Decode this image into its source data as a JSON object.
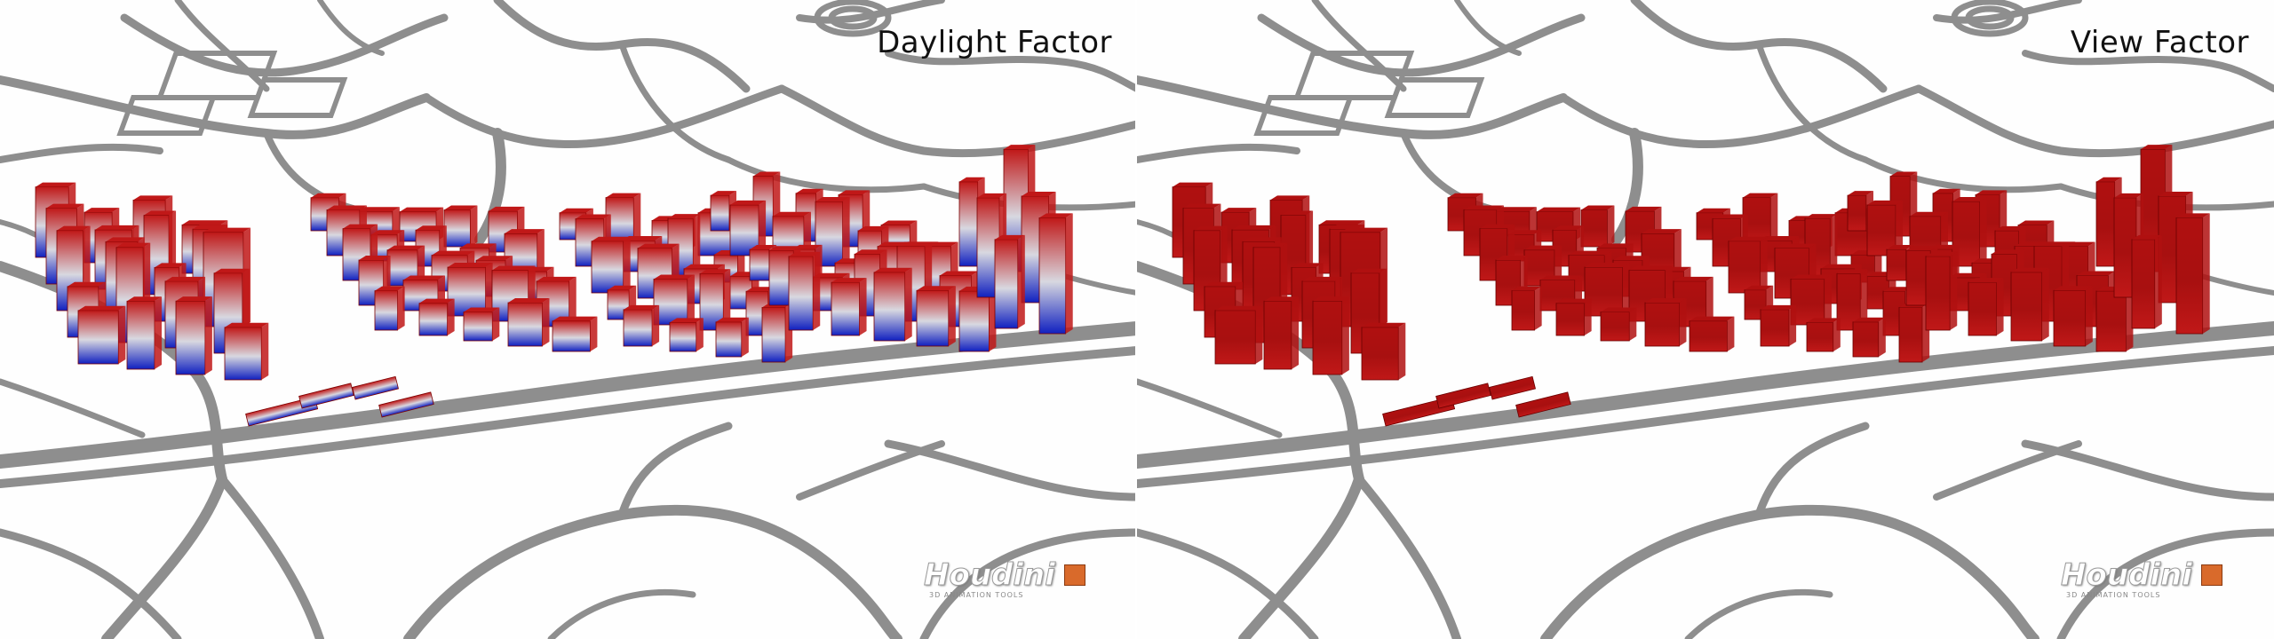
{
  "panels": [
    {
      "title": "Daylight Factor",
      "colors": {
        "top": "#c01818",
        "mid": "#d8d8e0",
        "bottom": "#1020c0",
        "edge": "#7a0000"
      }
    },
    {
      "title": "View Factor",
      "colors": {
        "top": "#b01010",
        "mid": "#a81010",
        "bottom": "#c01818",
        "edge": "#6a0000"
      }
    }
  ],
  "map": {
    "road_color": "#8e8e8e",
    "road_light": "#bdbdbd"
  },
  "logo": {
    "wordmark": "Houdini",
    "tagline": "3D ANIMATION TOOLS",
    "accent": "#d96a2b"
  }
}
